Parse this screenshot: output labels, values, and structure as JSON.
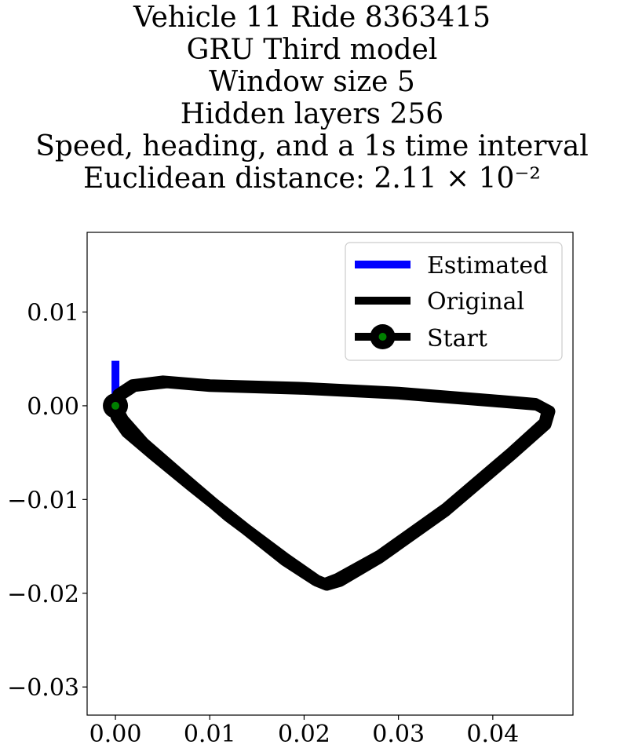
{
  "chart_data": {
    "type": "line",
    "title_lines": [
      "Vehicle 11 Ride 8363415",
      "GRU Third model",
      "Window size 5",
      "Hidden layers 256",
      "Speed, heading, and a 1s time interval",
      "Euclidean distance: 2.11 × 10⁻²"
    ],
    "xlabel": "",
    "ylabel": "",
    "xlim": [
      -0.003,
      0.0485
    ],
    "ylim": [
      -0.033,
      0.0185
    ],
    "xticks": [
      0.0,
      0.01,
      0.02,
      0.03,
      0.04
    ],
    "xtick_labels": [
      "0.00",
      "0.01",
      "0.02",
      "0.03",
      "0.04"
    ],
    "yticks": [
      0.01,
      0.0,
      -0.01,
      -0.02,
      -0.03
    ],
    "ytick_labels": [
      "0.01",
      "0.00",
      "−0.01",
      "−0.02",
      "−0.03"
    ],
    "grid": false,
    "legend_position": "top-right",
    "series": [
      {
        "name": "Estimated",
        "color": "#0000ff",
        "x": [
          0.0,
          0.0,
          0.0
        ],
        "y": [
          0.0,
          0.0027,
          0.0048
        ]
      },
      {
        "name": "Original",
        "color": "#000000",
        "x": [
          0.0,
          0.0003,
          0.0018,
          0.005,
          0.01,
          0.02,
          0.03,
          0.04,
          0.0445,
          0.0458,
          0.0455,
          0.042,
          0.035,
          0.028,
          0.0235,
          0.0222,
          0.0212,
          0.018,
          0.013,
          0.008,
          0.004,
          0.0012,
          0.0001,
          0.0,
          0.0003,
          0.002,
          0.0055,
          0.01,
          0.02,
          0.03,
          0.04,
          0.0447,
          0.046,
          0.0456,
          0.042,
          0.035,
          0.028,
          0.0238,
          0.0224,
          0.0214,
          0.018,
          0.012,
          0.007,
          0.003,
          0.0008,
          0.0
        ],
        "y": [
          0.0,
          0.0012,
          0.0022,
          0.0026,
          0.0022,
          0.0019,
          0.0014,
          0.0006,
          0.0002,
          -0.0005,
          -0.0018,
          -0.005,
          -0.011,
          -0.016,
          -0.0185,
          -0.019,
          -0.0186,
          -0.0165,
          -0.0125,
          -0.0085,
          -0.0052,
          -0.0028,
          -0.0012,
          0.0,
          0.001,
          0.0021,
          0.0025,
          0.0021,
          0.0018,
          0.0013,
          0.0005,
          0.0001,
          -0.0006,
          -0.002,
          -0.0052,
          -0.0112,
          -0.0162,
          -0.0187,
          -0.0191,
          -0.0187,
          -0.0163,
          -0.0118,
          -0.0075,
          -0.004,
          -0.0015,
          0.0
        ]
      },
      {
        "name": "Start",
        "color": "#000000",
        "marker_fill": "#008000",
        "x": [
          0.0
        ],
        "y": [
          0.0
        ]
      }
    ]
  }
}
